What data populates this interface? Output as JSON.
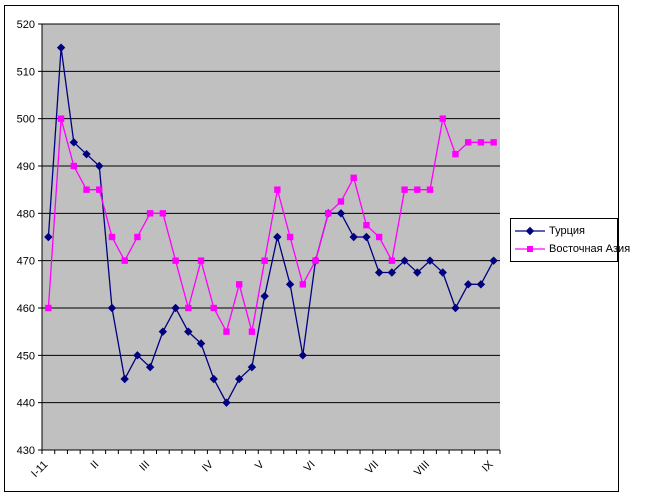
{
  "chart_data": {
    "type": "line",
    "title": "",
    "plot_bg": "#c0c0c0",
    "chart_bg": "#ffffff",
    "grid_color": "#000000",
    "axis_color": "#000000",
    "grid": true,
    "legend_position": "right",
    "y_axis": {
      "min": 430,
      "max": 520,
      "step": 10,
      "tick_labels": [
        "520",
        "510",
        "500",
        "490",
        "480",
        "470",
        "460",
        "450",
        "440",
        "430"
      ]
    },
    "x_axis": {
      "n_categories": 36,
      "labels": [
        "I-11",
        "II",
        "III",
        "IV",
        "V",
        "VI",
        "VII",
        "VIII",
        "IX"
      ],
      "label_start_indices": [
        0,
        4,
        8,
        13,
        17,
        21,
        26,
        30,
        35
      ]
    },
    "series": [
      {
        "name": "Турция",
        "color": "#000080",
        "marker": "diamond",
        "values": [
          475,
          515,
          495,
          492.5,
          490,
          460,
          445,
          450,
          447.5,
          455,
          460,
          455,
          452.5,
          445,
          440,
          445,
          447.5,
          462.5,
          475,
          465,
          450,
          470,
          480,
          480,
          475,
          475,
          467.5,
          467.5,
          470,
          467.5,
          470,
          467.5,
          460,
          465,
          465,
          470
        ]
      },
      {
        "name": "Восточная Азия",
        "color": "#ff00ff",
        "marker": "square",
        "values": [
          460,
          500,
          490,
          485,
          485,
          475,
          470,
          475,
          480,
          480,
          470,
          460,
          470,
          460,
          455,
          465,
          455,
          470,
          485,
          475,
          465,
          470,
          480,
          482.5,
          487.5,
          477.5,
          475,
          470,
          485,
          485,
          485,
          500,
          492.5,
          495,
          495,
          495
        ]
      }
    ]
  }
}
